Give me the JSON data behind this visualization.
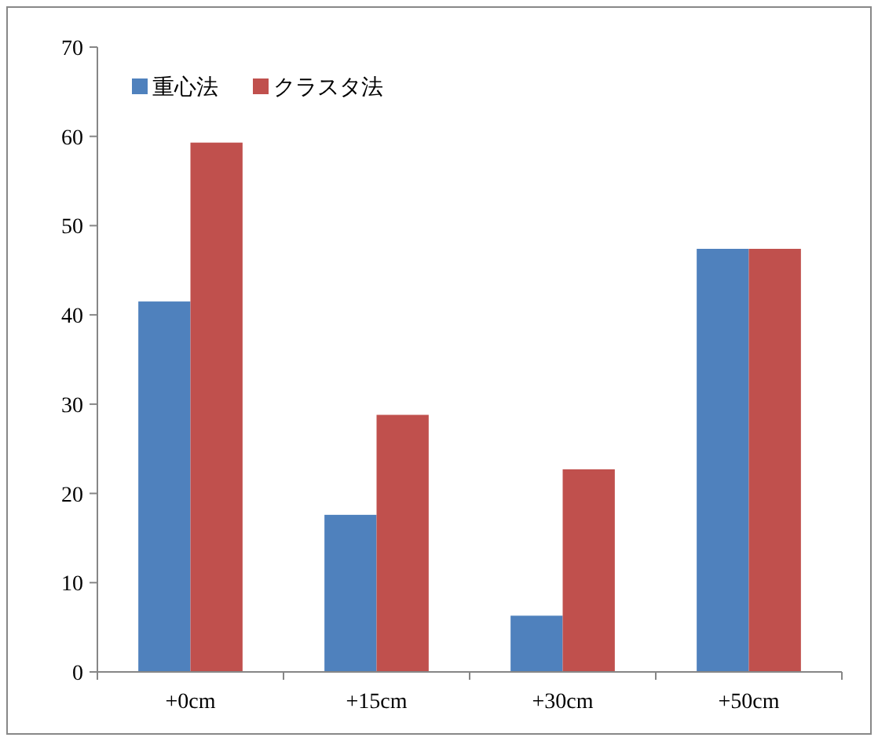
{
  "chart_data": {
    "type": "bar",
    "categories": [
      "+0cm",
      "+15cm",
      "+30cm",
      "+50cm"
    ],
    "series": [
      {
        "name": "重心法",
        "color": "#4f81bd",
        "values": [
          41.5,
          17.6,
          6.3,
          47.4
        ]
      },
      {
        "name": "クラスタ法",
        "color": "#c0504d",
        "values": [
          59.3,
          28.8,
          22.7,
          47.4
        ]
      }
    ],
    "ylim": [
      0,
      70
    ],
    "yticks": [
      0,
      10,
      20,
      30,
      40,
      50,
      60,
      70
    ],
    "grid": false,
    "legend": "top left"
  }
}
